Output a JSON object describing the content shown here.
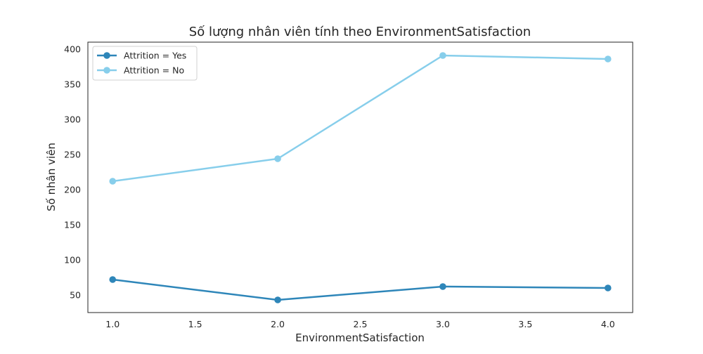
{
  "chart_data": {
    "type": "line",
    "title": "Số lượng nhân viên tính theo EnvironmentSatisfaction",
    "xlabel": "EnvironmentSatisfaction",
    "ylabel": "Số nhân viên",
    "x": [
      1.0,
      2.0,
      3.0,
      4.0
    ],
    "xlim": [
      0.85,
      4.15
    ],
    "ylim": [
      25,
      410
    ],
    "xticks": [
      "1.0",
      "1.5",
      "2.0",
      "2.5",
      "3.0",
      "3.5",
      "4.0"
    ],
    "xtick_values": [
      1.0,
      1.5,
      2.0,
      2.5,
      3.0,
      3.5,
      4.0
    ],
    "yticks": [
      "50",
      "100",
      "150",
      "200",
      "250",
      "300",
      "350",
      "400"
    ],
    "ytick_values": [
      50,
      100,
      150,
      200,
      250,
      300,
      350,
      400
    ],
    "grid": false,
    "legend_position": "upper-left",
    "series": [
      {
        "name": "Attrition = Yes",
        "values": [
          72,
          43,
          62,
          60
        ],
        "color": "#2e86b9"
      },
      {
        "name": "Attrition = No",
        "values": [
          212,
          244,
          391,
          386
        ],
        "color": "#87ceeb"
      }
    ]
  }
}
